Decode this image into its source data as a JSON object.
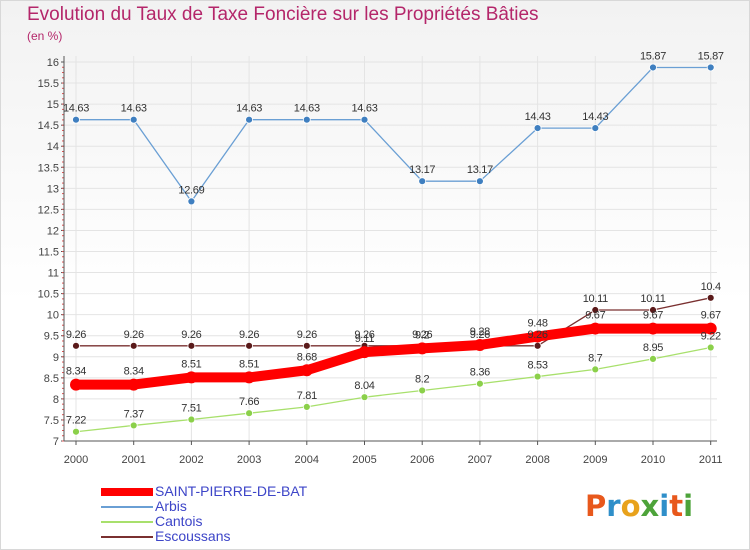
{
  "header": {
    "title": "Evolution du Taux de Taxe Foncière sur les Propriétés Bâties",
    "unit": "(en %)"
  },
  "logo": {
    "text": "Proxiti",
    "letters": [
      "P",
      "r",
      "o",
      "x",
      "i",
      "t",
      "i"
    ],
    "colors": [
      "#e8581c",
      "#2f8fc9",
      "#e8a21c",
      "#4da33a",
      "#2f8fc9",
      "#e8581c",
      "#4da33a"
    ]
  },
  "chart_data": {
    "type": "line",
    "title": "Evolution du Taux de Taxe Foncière sur les Propriétés Bâties",
    "ylabel": "(en %)",
    "xlabel": "",
    "categories": [
      "2000",
      "2001",
      "2002",
      "2003",
      "2004",
      "2005",
      "2006",
      "2007",
      "2008",
      "2009",
      "2010",
      "2011"
    ],
    "ylim": [
      7,
      16
    ],
    "yticks": [
      7,
      7.5,
      8,
      8.5,
      9,
      9.5,
      10,
      10.5,
      11,
      11.5,
      12,
      12.5,
      13,
      13.5,
      14,
      14.5,
      15,
      15.5,
      16
    ],
    "series": [
      {
        "name": "SAINT-PIERRE-DE-BAT",
        "color": "#ff0000",
        "values": [
          8.34,
          8.34,
          8.51,
          8.51,
          8.68,
          9.11,
          9.2,
          9.28,
          9.48,
          9.67,
          9.67,
          9.67
        ]
      },
      {
        "name": "Arbis",
        "color": "#6a9fd4",
        "values": [
          14.63,
          14.63,
          12.69,
          14.63,
          14.63,
          14.63,
          13.17,
          13.17,
          14.43,
          14.43,
          15.87,
          15.87
        ]
      },
      {
        "name": "Cantois",
        "color": "#a8e06c",
        "values": [
          7.22,
          7.37,
          7.51,
          7.66,
          7.81,
          8.04,
          8.2,
          8.36,
          8.53,
          8.7,
          8.95,
          9.22
        ]
      },
      {
        "name": "Escoussans",
        "color": "#7a3030",
        "values": [
          9.26,
          9.26,
          9.26,
          9.26,
          9.26,
          9.26,
          9.26,
          9.26,
          9.26,
          10.11,
          10.11,
          10.4
        ]
      }
    ]
  }
}
